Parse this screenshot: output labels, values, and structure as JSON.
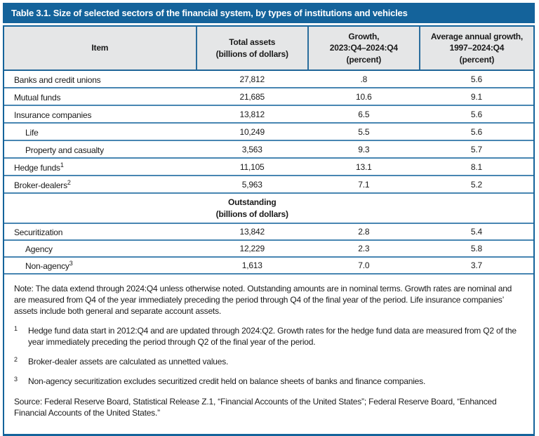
{
  "title": "Table 3.1. Size of selected sectors of the financial system, by types of institutions and vehicles",
  "colors": {
    "accent_blue": "#14639B",
    "row_line_blue": "#4886B2",
    "header_separator_blue": "#2A6D9D",
    "header_bg_gray": "#E5E6E7",
    "title_text": "#FFFFFF",
    "body_text": "#1A1A1A"
  },
  "table": {
    "columns": [
      "Item",
      "Total assets\n(billions of dollars)",
      "Growth,\n2023:Q4–2024:Q4\n(percent)",
      "Average annual growth,\n1997–2024:Q4\n(percent)"
    ],
    "rows": [
      {
        "label": "Banks and credit unions",
        "total": "27,812",
        "growth": ".8",
        "avg": "5.6"
      },
      {
        "label": "Mutual funds",
        "total": "21,685",
        "growth": "10.6",
        "avg": "9.1"
      },
      {
        "label": "Insurance companies",
        "total": "13,812",
        "growth": "6.5",
        "avg": "5.6"
      },
      {
        "label": "Life",
        "total": "10,249",
        "growth": "5.5",
        "avg": "5.6"
      },
      {
        "label": "Property and casualty",
        "total": "3,563",
        "growth": "9.3",
        "avg": "5.7"
      },
      {
        "label": "Hedge funds",
        "sup": "1",
        "total": "11,105",
        "growth": "13.1",
        "avg": "8.1"
      },
      {
        "label": "Broker-dealers",
        "sup": "2",
        "total": "5,963",
        "growth": "7.1",
        "avg": "5.2"
      },
      {
        "label": "Securitization",
        "total": "13,842",
        "growth": "2.8",
        "avg": "5.4"
      },
      {
        "label": "Agency",
        "total": "12,229",
        "growth": "2.3",
        "avg": "5.8"
      },
      {
        "label": "Non-agency",
        "sup": "3",
        "total": "1,613",
        "growth": "7.0",
        "avg": "3.7"
      }
    ],
    "section_header": "Outstanding\n(billions of dollars)"
  },
  "notes": {
    "note": "Note: The data extend through 2024:Q4 unless otherwise noted. Outstanding amounts are in nominal terms. Growth rates are nominal and are measured from Q4 of the year immediately preceding the period through Q4 of the final year of the period. Life insurance companies’ assets include both general and separate account assets.",
    "footnotes": [
      {
        "marker": "1",
        "text": "Hedge fund data start in 2012:Q4 and are updated through 2024:Q2. Growth rates for the hedge fund data are measured from Q2 of the year immediately preceding the period through Q2 of the final year of the period."
      },
      {
        "marker": "2",
        "text": "Broker-dealer assets are calculated as unnetted values."
      },
      {
        "marker": "3",
        "text": "Non-agency securitization excludes securitized credit held on balance sheets of banks and finance companies."
      }
    ],
    "source": "Source: Federal Reserve Board, Statistical Release Z.1, “Financial Accounts of the United States”; Federal Reserve Board, “Enhanced Financial Accounts of the United States.”"
  }
}
